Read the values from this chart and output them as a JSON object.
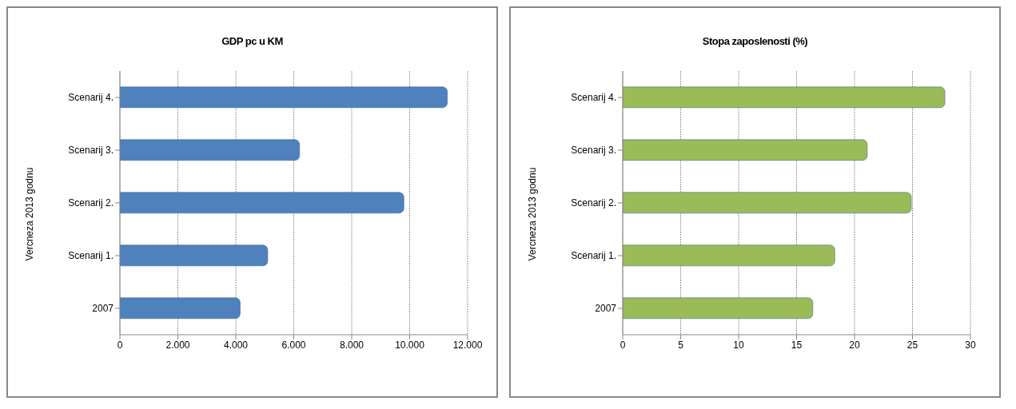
{
  "chart_data": [
    {
      "type": "bar",
      "orientation": "horizontal",
      "title": "GDP pc u KM",
      "categories": [
        "Scenarij 4.",
        "Scenarij 3.",
        "Scenarij 2.",
        "Scenarij  1.",
        "2007"
      ],
      "values": [
        11300,
        6200,
        9800,
        5100,
        4150
      ],
      "color": "#4f81bd",
      "xlim": [
        0,
        12000
      ],
      "xticks": [
        0,
        {
          "value": 2000,
          "label": "2.000"
        },
        {
          "value": 4000,
          "label": "4.000"
        },
        {
          "value": 6000,
          "label": "6.000"
        },
        {
          "value": 8000,
          "label": "8.000"
        },
        {
          "value": 10000,
          "label": "10.000"
        },
        {
          "value": 12000,
          "label": "12.000"
        }
      ],
      "grid": "x",
      "annotations": [
        "Vercneza 2013 godnu"
      ]
    },
    {
      "type": "bar",
      "orientation": "horizontal",
      "title": "Stopa zaposlenosti (%)",
      "categories": [
        "Scenarij 4.",
        "Scenarij 3.",
        "Scenarij 2.",
        "Scenarij  1.",
        "2007"
      ],
      "values": [
        27.8,
        21.1,
        24.9,
        18.3,
        16.4
      ],
      "color": "#9bbb59",
      "xlim": [
        0,
        30
      ],
      "xticks": [
        0,
        5,
        10,
        15,
        20,
        25,
        30
      ],
      "grid": "x",
      "annotations": [
        "Vercneza 2013 godnu"
      ]
    }
  ]
}
